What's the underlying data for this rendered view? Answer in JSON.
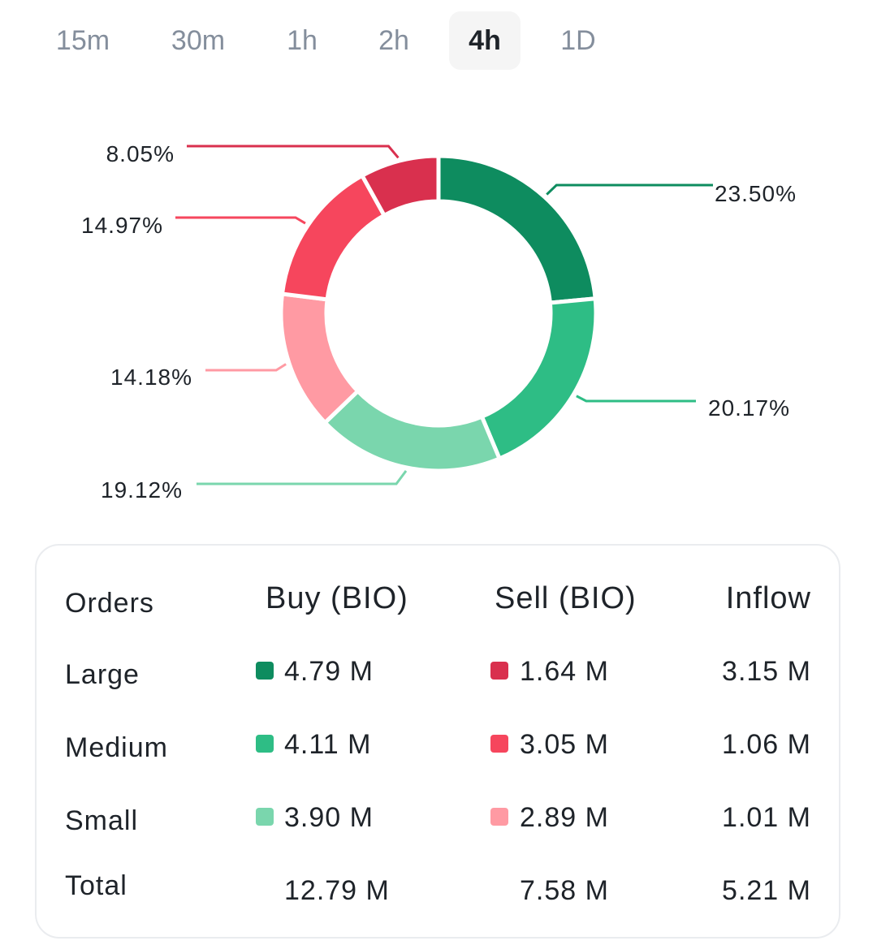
{
  "tabs": [
    {
      "label": "15m",
      "active": false
    },
    {
      "label": "30m",
      "active": false
    },
    {
      "label": "1h",
      "active": false
    },
    {
      "label": "2h",
      "active": false
    },
    {
      "label": "4h",
      "active": true
    },
    {
      "label": "1D",
      "active": false
    }
  ],
  "chart_data": {
    "type": "pie",
    "title": "",
    "slices": [
      {
        "label": "23.50%",
        "value": 23.5,
        "color": "#0e8c5f"
      },
      {
        "label": "20.17%",
        "value": 20.17,
        "color": "#2ebd85"
      },
      {
        "label": "19.12%",
        "value": 19.12,
        "color": "#7ad6ad"
      },
      {
        "label": "14.18%",
        "value": 14.18,
        "color": "#ff9aa3"
      },
      {
        "label": "14.97%",
        "value": 14.97,
        "color": "#f6465d"
      },
      {
        "label": "8.05%",
        "value": 8.05,
        "color": "#d9304e"
      }
    ]
  },
  "table": {
    "headers": {
      "orders": "Orders",
      "buy": "Buy (BIO)",
      "sell": "Sell (BIO)",
      "inflow": "Inflow"
    },
    "rows": [
      {
        "label": "Large",
        "buy": "4.79 M",
        "sell": "1.64 M",
        "inflow": "3.15 M",
        "buy_color": "#0e8c5f",
        "sell_color": "#d9304e"
      },
      {
        "label": "Medium",
        "buy": "4.11 M",
        "sell": "3.05 M",
        "inflow": "1.06 M",
        "buy_color": "#2ebd85",
        "sell_color": "#f6465d"
      },
      {
        "label": "Small",
        "buy": "3.90 M",
        "sell": "2.89 M",
        "inflow": "1.01 M",
        "buy_color": "#7ad6ad",
        "sell_color": "#ff9aa3"
      }
    ],
    "total": {
      "label": "Total",
      "buy": "12.79 M",
      "sell": "7.58 M",
      "inflow": "5.21 M"
    }
  }
}
